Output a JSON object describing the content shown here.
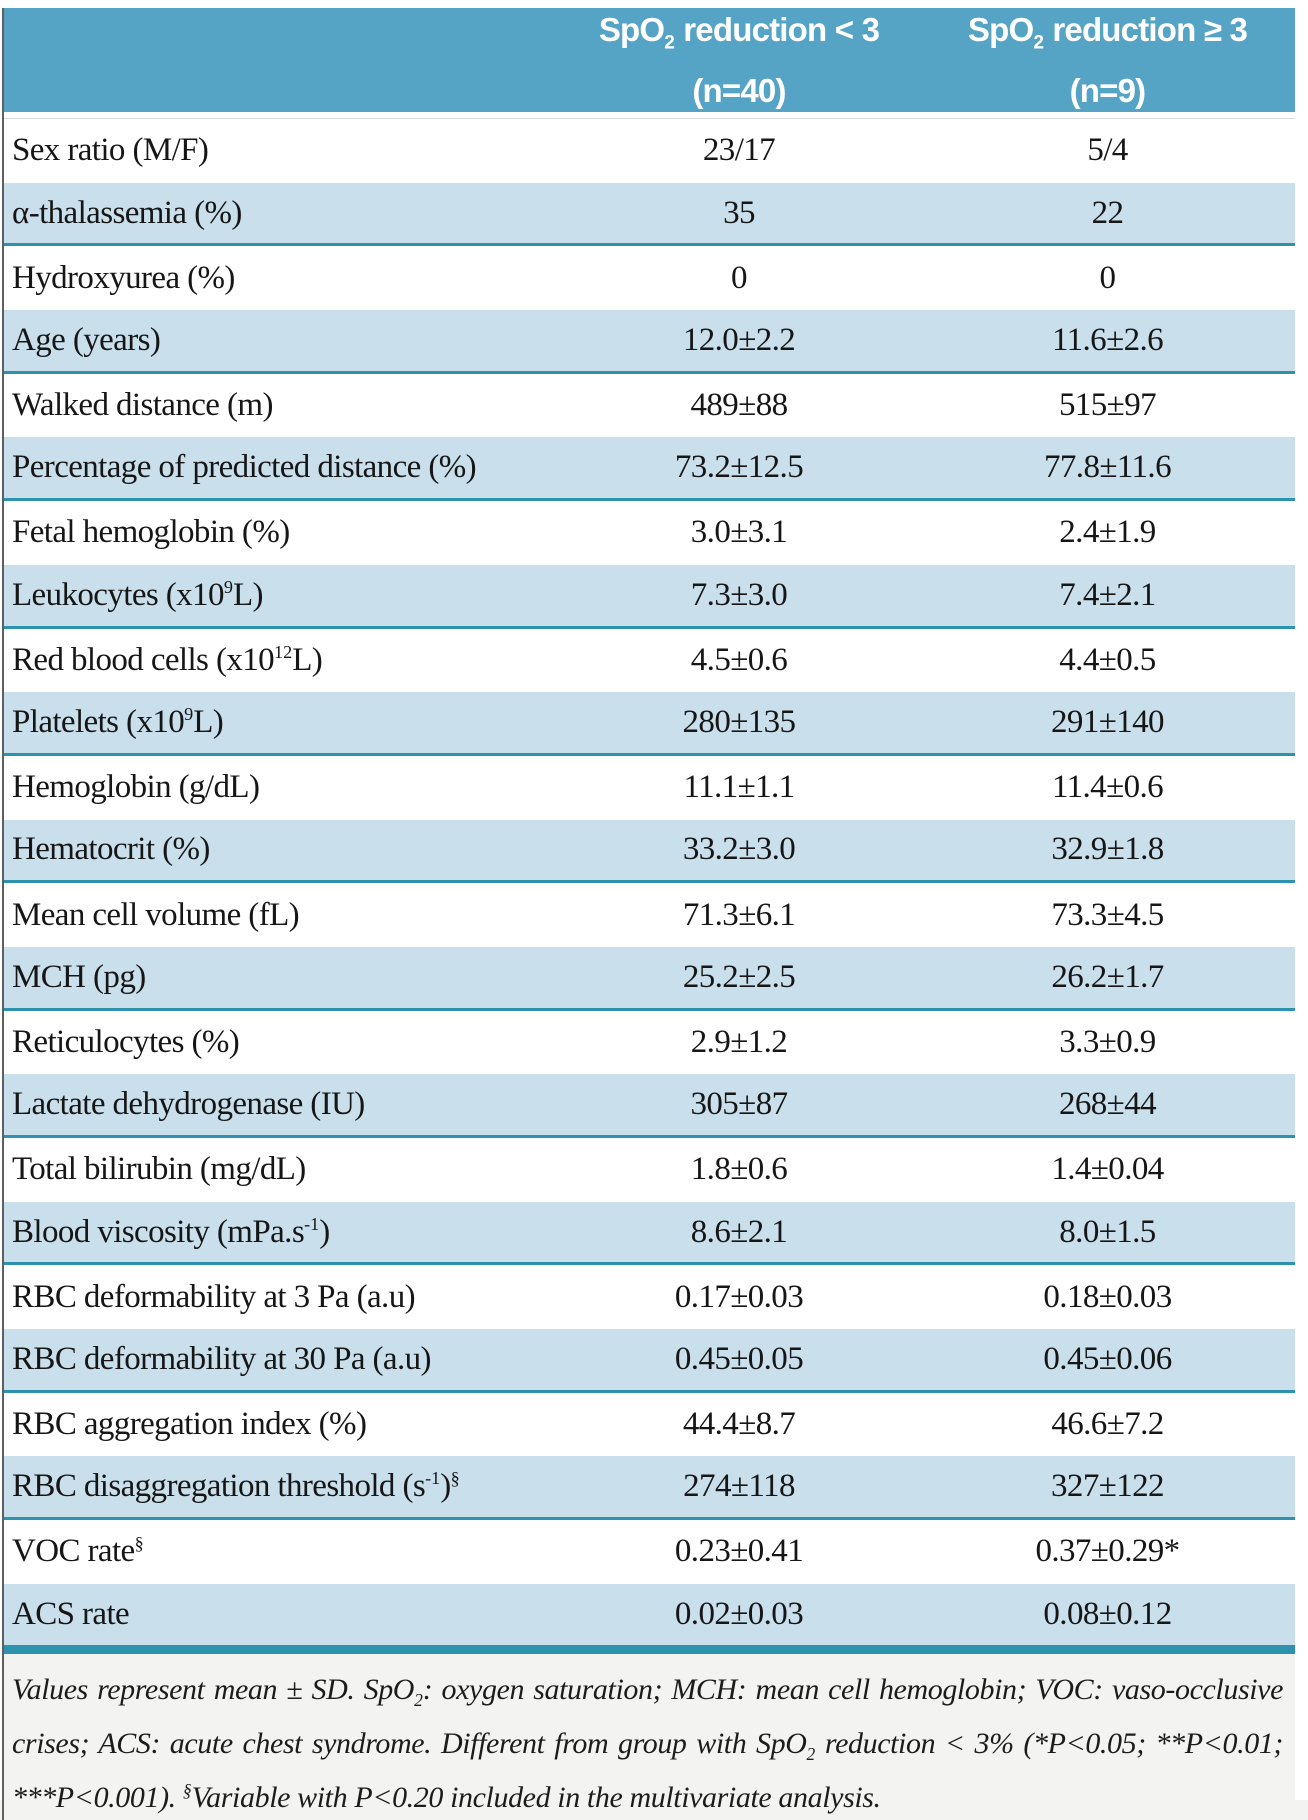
{
  "colors": {
    "header_bg": "#56a4c5",
    "header_text": "#ffffff",
    "shaded_row_bg": "#c9dfec",
    "separator_teal": "#2c92ae",
    "body_text": "#161616",
    "footnote_bg": "#f3f3f1"
  },
  "table": {
    "header": {
      "group1": {
        "title": [
          {
            "t": "SpO"
          },
          {
            "t": "2",
            "sub": true
          },
          {
            "t": " reduction < 3"
          }
        ],
        "n": "(n=40)"
      },
      "group2": {
        "title": [
          {
            "t": "SpO"
          },
          {
            "t": "2",
            "sub": true
          },
          {
            "t": " reduction ≥ 3"
          }
        ],
        "n": "(n=9)"
      }
    },
    "rows": [
      {
        "label": [
          {
            "t": "Sex ratio (M/F)"
          }
        ],
        "group1": "23/17",
        "group2": "5/4"
      },
      {
        "label": [
          {
            "t": "α-thalassemia (%)"
          }
        ],
        "group1": "35",
        "group2": "22"
      },
      {
        "label": [
          {
            "t": "Hydroxyurea (%)"
          }
        ],
        "group1": "0",
        "group2": "0"
      },
      {
        "label": [
          {
            "t": "Age (years)"
          }
        ],
        "group1": "12.0±2.2",
        "group2": "11.6±2.6"
      },
      {
        "label": [
          {
            "t": "Walked distance (m)"
          }
        ],
        "group1": "489±88",
        "group2": "515±97"
      },
      {
        "label": [
          {
            "t": "Percentage of predicted distance (%)"
          }
        ],
        "group1": "73.2±12.5",
        "group2": "77.8±11.6"
      },
      {
        "label": [
          {
            "t": "Fetal hemoglobin (%)"
          }
        ],
        "group1": "3.0±3.1",
        "group2": "2.4±1.9"
      },
      {
        "label": [
          {
            "t": "Leukocytes (x10"
          },
          {
            "t": "9",
            "sup": true
          },
          {
            "t": "L)"
          }
        ],
        "group1": "7.3±3.0",
        "group2": "7.4±2.1"
      },
      {
        "label": [
          {
            "t": "Red blood cells (x10"
          },
          {
            "t": "12",
            "sup": true
          },
          {
            "t": "L)"
          }
        ],
        "group1": "4.5±0.6",
        "group2": "4.4±0.5"
      },
      {
        "label": [
          {
            "t": "Platelets (x10"
          },
          {
            "t": "9",
            "sup": true
          },
          {
            "t": "L)"
          }
        ],
        "group1": "280±135",
        "group2": "291±140"
      },
      {
        "label": [
          {
            "t": "Hemoglobin (g/dL)"
          }
        ],
        "group1": "11.1±1.1",
        "group2": "11.4±0.6"
      },
      {
        "label": [
          {
            "t": "Hematocrit (%)"
          }
        ],
        "group1": "33.2±3.0",
        "group2": "32.9±1.8"
      },
      {
        "label": [
          {
            "t": "Mean cell volume (fL)"
          }
        ],
        "group1": "71.3±6.1",
        "group2": "73.3±4.5"
      },
      {
        "label": [
          {
            "t": "MCH (pg)"
          }
        ],
        "group1": "25.2±2.5",
        "group2": "26.2±1.7"
      },
      {
        "label": [
          {
            "t": "Reticulocytes (%)"
          }
        ],
        "group1": "2.9±1.2",
        "group2": "3.3±0.9"
      },
      {
        "label": [
          {
            "t": "Lactate dehydrogenase (IU)"
          }
        ],
        "group1": "305±87",
        "group2": "268±44"
      },
      {
        "label": [
          {
            "t": "Total bilirubin (mg/dL)"
          }
        ],
        "group1": "1.8±0.6",
        "group2": "1.4±0.04"
      },
      {
        "label": [
          {
            "t": "Blood viscosity (mPa.s"
          },
          {
            "t": "-1",
            "sup": true
          },
          {
            "t": ")"
          }
        ],
        "group1": "8.6±2.1",
        "group2": "8.0±1.5"
      },
      {
        "label": [
          {
            "t": "RBC deformability at 3 Pa (a.u)"
          }
        ],
        "group1": "0.17±0.03",
        "group2": "0.18±0.03"
      },
      {
        "label": [
          {
            "t": "RBC deformability at 30 Pa (a.u)"
          }
        ],
        "group1": "0.45±0.05",
        "group2": "0.45±0.06"
      },
      {
        "label": [
          {
            "t": "RBC aggregation index (%)"
          }
        ],
        "group1": "44.4±8.7",
        "group2": "46.6±7.2"
      },
      {
        "label": [
          {
            "t": "RBC disaggregation threshold (s"
          },
          {
            "t": "-1",
            "sup": true
          },
          {
            "t": ")"
          },
          {
            "t": "§",
            "sup": true
          }
        ],
        "group1": "274±118",
        "group2": "327±122"
      },
      {
        "label": [
          {
            "t": "VOC rate"
          },
          {
            "t": "§",
            "sup": true
          }
        ],
        "group1": "0.23±0.41",
        "group2": "0.37±0.29*"
      },
      {
        "label": [
          {
            "t": "ACS rate"
          }
        ],
        "group1": "0.02±0.03",
        "group2": "0.08±0.12"
      }
    ]
  },
  "footnote": {
    "segments": [
      {
        "t": "Values represent mean ± SD. SpO"
      },
      {
        "t": "2",
        "sub": true
      },
      {
        "t": ": oxygen saturation; MCH: mean cell hemoglobin; VOC: vaso-occlusive crises; ACS: acute chest syndrome. Different from group with SpO"
      },
      {
        "t": "2",
        "sub": true
      },
      {
        "t": " reduction < 3% (*P<0.05; **P<0.01; ***P<0.001). "
      },
      {
        "t": "§",
        "sup": true
      },
      {
        "t": "Variable with P<0.20 included in the multivariate analysis."
      }
    ]
  }
}
